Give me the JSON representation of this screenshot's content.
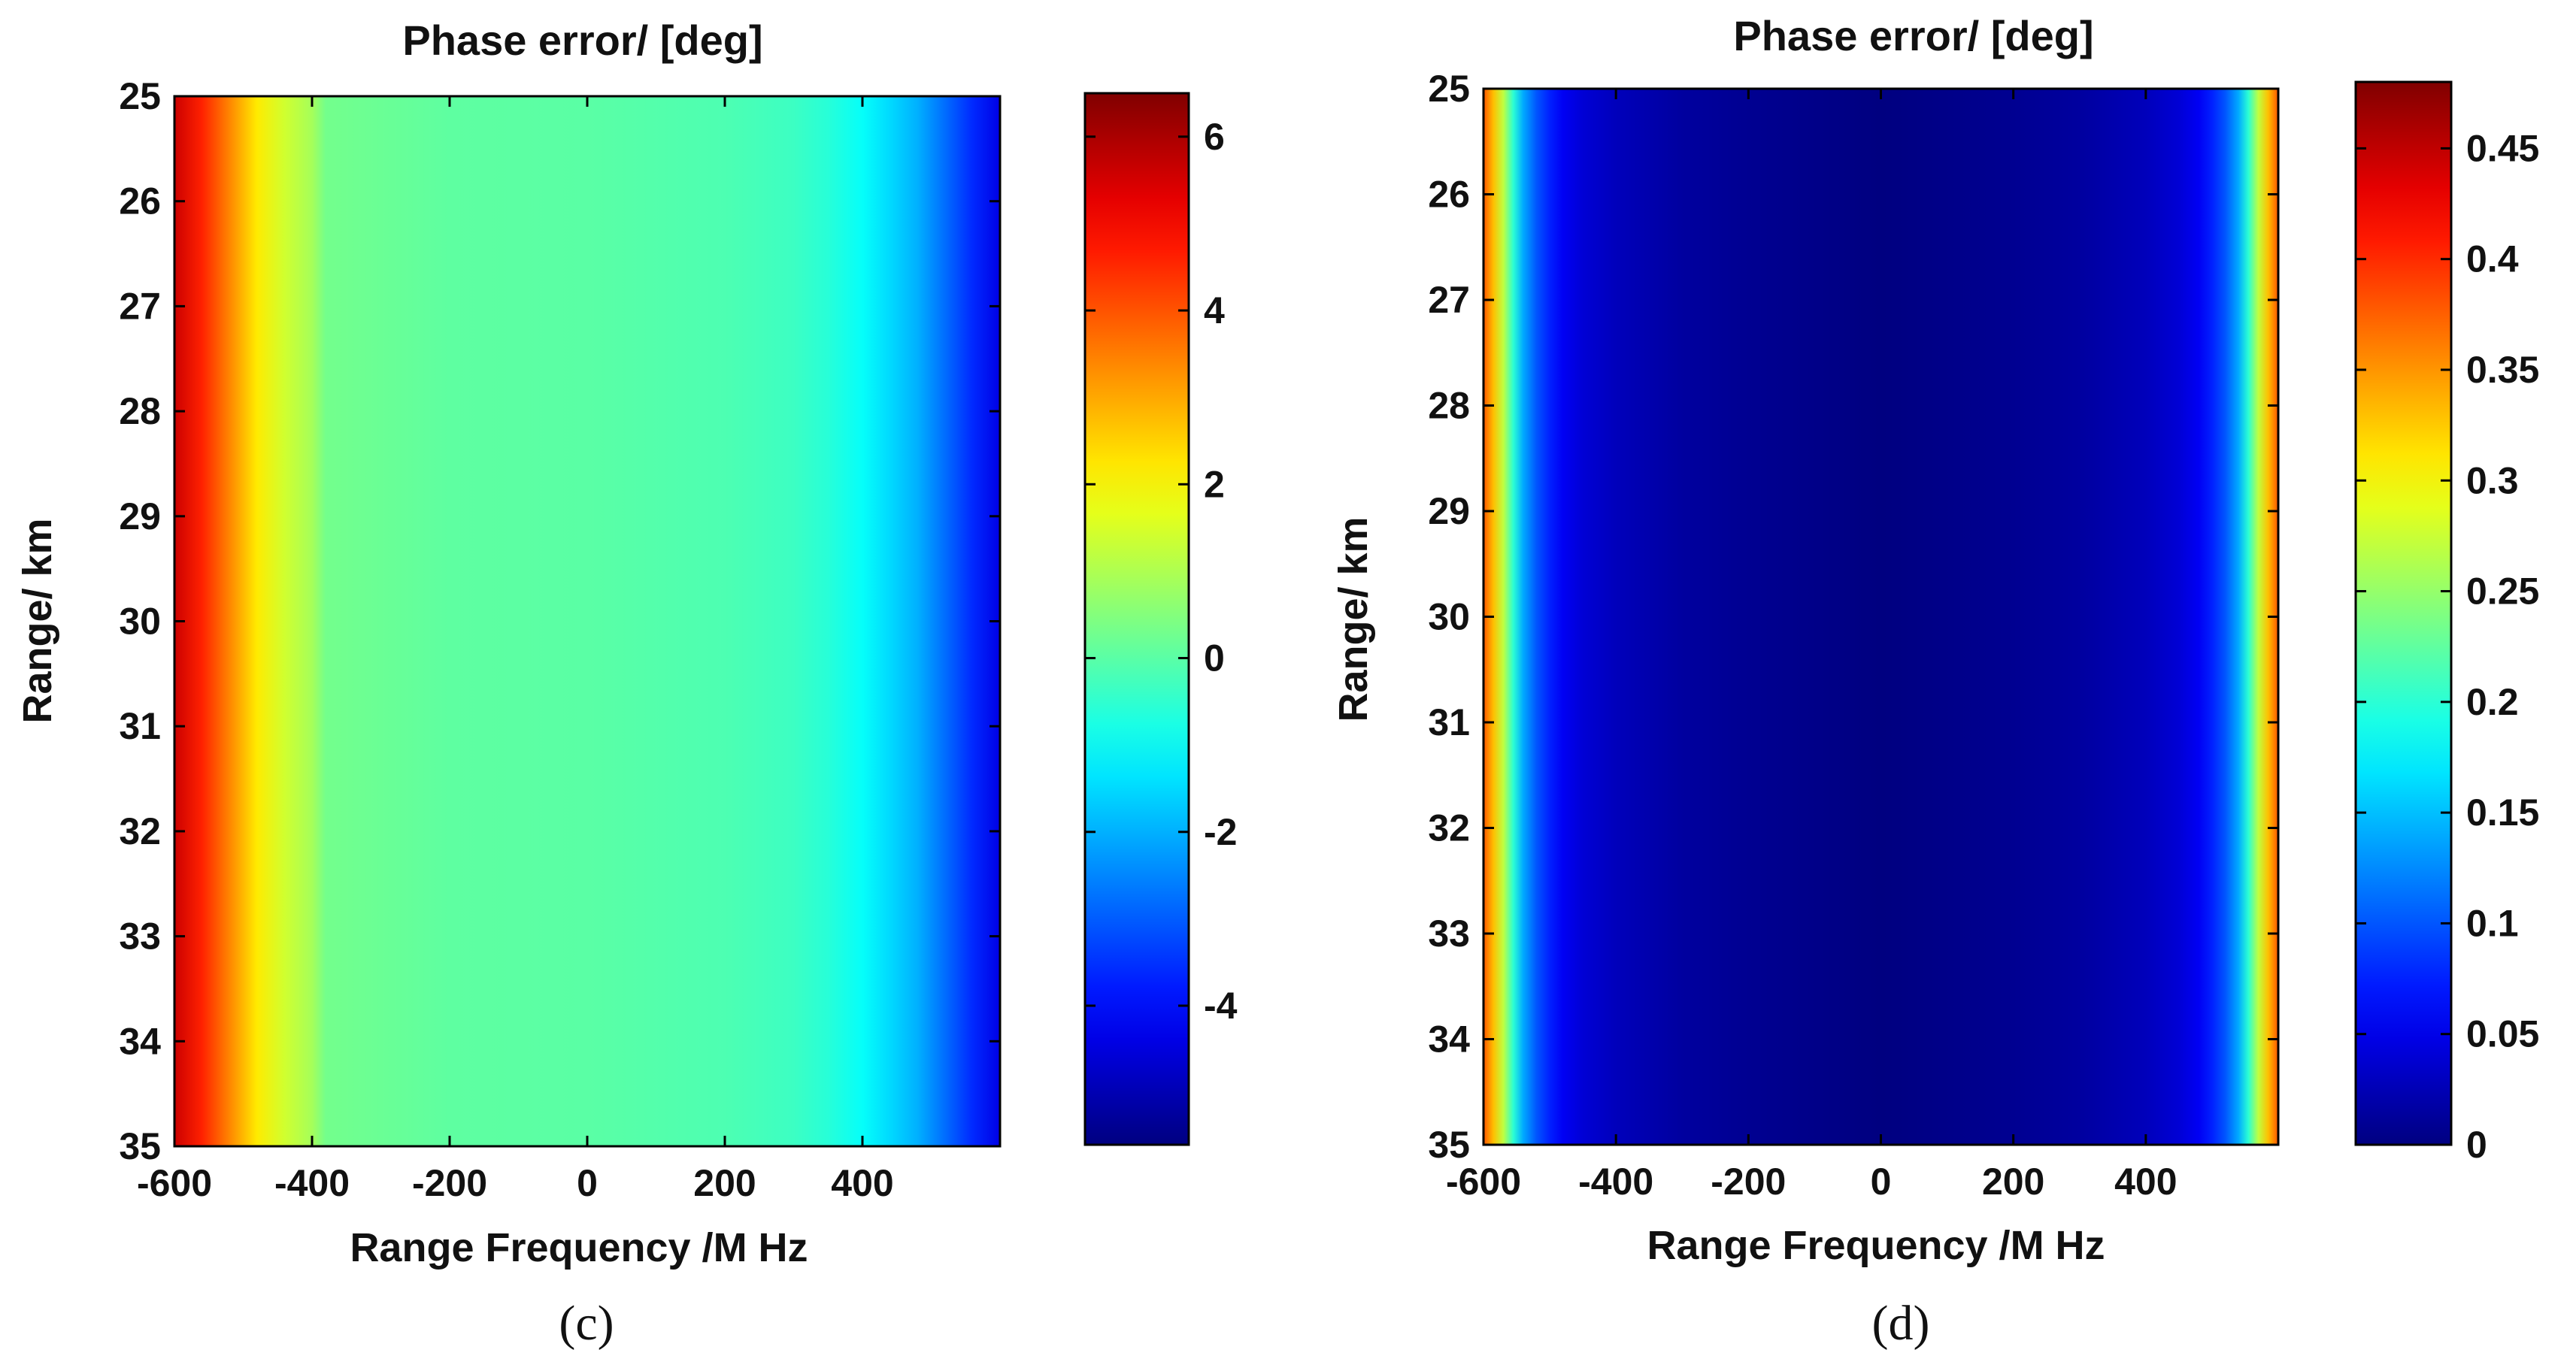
{
  "chart_data": [
    {
      "type": "heatmap",
      "title": "Phase error/  [deg]",
      "xlabel": "Range Frequency /M Hz",
      "ylabel": "Range/ km",
      "caption": "(c)",
      "xlim": [
        -600,
        600
      ],
      "ylim": [
        25,
        35
      ],
      "y_reversed": true,
      "xticks": [
        "-600",
        "-400",
        "-200",
        "0",
        "200",
        "400"
      ],
      "yticks": [
        "25",
        "26",
        "27",
        "28",
        "29",
        "30",
        "31",
        "32",
        "33",
        "34",
        "35"
      ],
      "colorbar": {
        "range": [
          -5.6,
          6.5
        ],
        "ticks": [
          "-4",
          "-2",
          "0",
          "2",
          "4",
          "6"
        ]
      },
      "colormap": "jet",
      "profile": {
        "x": [
          -600,
          -560,
          -520,
          -480,
          -440,
          -400,
          -380,
          -300,
          -200,
          0,
          200,
          300,
          350,
          400,
          440,
          480,
          520,
          560,
          600
        ],
        "value": [
          5.6,
          4.6,
          3.4,
          2.2,
          1.4,
          0.9,
          0.3,
          0.2,
          0.05,
          0.0,
          -0.15,
          -0.35,
          -0.6,
          -1.0,
          -1.5,
          -2.0,
          -2.8,
          -3.6,
          -4.4
        ]
      }
    },
    {
      "type": "heatmap",
      "title": "Phase error/  [deg]",
      "xlabel": "Range Frequency /M Hz",
      "ylabel": "Range/ km",
      "caption": "(d)",
      "xlim": [
        -600,
        600
      ],
      "ylim": [
        25,
        35
      ],
      "y_reversed": true,
      "xticks": [
        "-600",
        "-400",
        "-200",
        "0",
        "200",
        "400"
      ],
      "yticks": [
        "25",
        "26",
        "27",
        "28",
        "29",
        "30",
        "31",
        "32",
        "33",
        "34",
        "35"
      ],
      "colorbar": {
        "range": [
          0,
          0.48
        ],
        "ticks": [
          "0",
          "0.05",
          "0.1",
          "0.15",
          "0.2",
          "0.25",
          "0.3",
          "0.35",
          "0.4",
          "0.45"
        ]
      },
      "colormap": "jet",
      "profile": {
        "x": [
          -600,
          -585,
          -570,
          -555,
          -540,
          -520,
          -500,
          -480,
          -450,
          -400,
          -300,
          -200,
          0,
          200,
          300,
          400,
          450,
          480,
          500,
          520,
          540,
          555,
          570,
          585,
          600
        ],
        "value": [
          0.38,
          0.33,
          0.27,
          0.2,
          0.14,
          0.1,
          0.075,
          0.055,
          0.04,
          0.028,
          0.015,
          0.008,
          0.0,
          0.008,
          0.015,
          0.028,
          0.04,
          0.055,
          0.075,
          0.1,
          0.14,
          0.2,
          0.27,
          0.33,
          0.38
        ]
      }
    }
  ]
}
